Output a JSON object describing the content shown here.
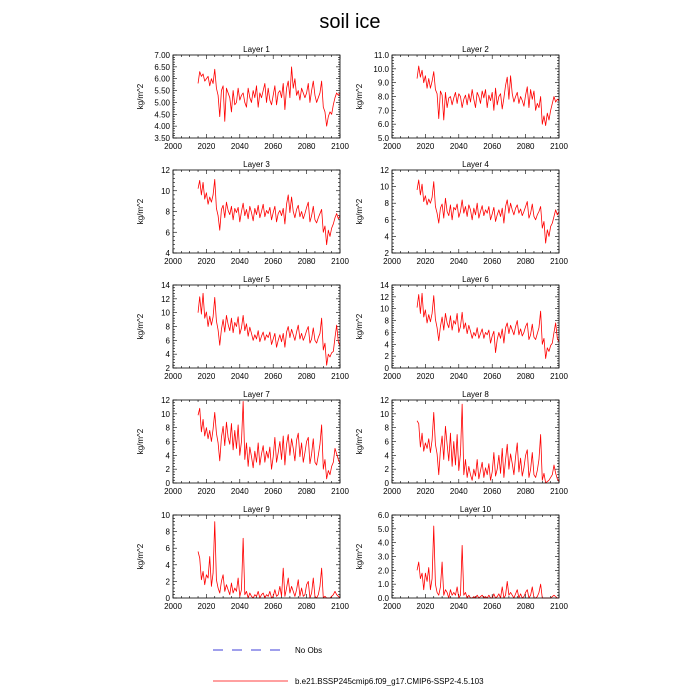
{
  "title": "soil ice",
  "legend": [
    {
      "label": "No Obs",
      "color": "#0000cc",
      "style": "dashed"
    },
    {
      "label": "b.e21.BSSP245cmip6.f09_g17.CMIP6-SSP2-4.5.103",
      "color": "#ff0000",
      "style": "solid"
    }
  ],
  "colors": {
    "series": "#ff0000",
    "obs": "#0000cc",
    "axis": "#000000"
  },
  "chart_data": [
    {
      "type": "line",
      "title": "Layer 1",
      "ylabel": "kg/m^2",
      "xlim": [
        2000,
        2100
      ],
      "ylim": [
        3.5,
        7.0
      ],
      "xticks": [
        "2000",
        "2020",
        "2040",
        "2060",
        "2080",
        "2100"
      ],
      "yticks": [
        "3.50",
        "4.00",
        "4.50",
        "5.00",
        "5.50",
        "6.00",
        "6.50",
        "7.00"
      ],
      "x_start": 2015,
      "values": [
        5.8,
        6.3,
        6.1,
        6.2,
        5.9,
        6.0,
        6.1,
        5.7,
        6.0,
        5.8,
        6.4,
        5.6,
        5.3,
        4.4,
        5.5,
        5.7,
        4.2,
        5.6,
        5.4,
        5.2,
        4.6,
        5.5,
        4.9,
        5.0,
        5.6,
        5.1,
        5.3,
        5.4,
        5.0,
        4.8,
        5.6,
        5.2,
        5.0,
        5.5,
        5.2,
        5.7,
        4.8,
        5.4,
        5.2,
        5.5,
        5.8,
        5.0,
        5.6,
        5.1,
        4.9,
        5.3,
        5.7,
        4.9,
        5.4,
        5.5,
        5.2,
        5.8,
        4.7,
        5.6,
        5.9,
        5.2,
        6.5,
        5.6,
        6.0,
        5.3,
        5.5,
        5.1,
        5.6,
        5.4,
        5.2,
        5.4,
        5.8,
        5.0,
        5.5,
        5.9,
        5.3,
        5.0,
        5.2,
        5.4,
        5.9,
        4.8,
        4.6,
        4.0,
        4.4,
        4.6,
        4.5,
        4.9,
        5.2,
        5.4,
        5.3,
        5.4
      ]
    },
    {
      "type": "line",
      "title": "Layer 2",
      "ylabel": "kg/m^2",
      "xlim": [
        2000,
        2100
      ],
      "ylim": [
        5.0,
        11.0
      ],
      "xticks": [
        "2000",
        "2020",
        "2040",
        "2060",
        "2080",
        "2100"
      ],
      "yticks": [
        "5.0",
        "6.0",
        "7.0",
        "8.0",
        "9.0",
        "10.0",
        "11.0"
      ],
      "x_start": 2015,
      "values": [
        9.3,
        10.2,
        9.4,
        9.9,
        9.0,
        9.5,
        8.6,
        9.3,
        8.6,
        9.1,
        9.8,
        8.5,
        8.2,
        6.4,
        8.4,
        8.1,
        6.3,
        8.3,
        7.2,
        7.9,
        8.0,
        7.4,
        7.9,
        8.3,
        7.5,
        8.2,
        8.0,
        7.2,
        7.8,
        8.1,
        7.4,
        8.2,
        7.6,
        8.5,
        7.8,
        7.2,
        8.3,
        8.0,
        7.5,
        8.4,
        7.9,
        8.5,
        7.2,
        8.1,
        7.7,
        8.3,
        7.0,
        8.6,
        7.4,
        8.0,
        8.2,
        7.1,
        7.9,
        8.8,
        9.4,
        7.8,
        9.5,
        8.2,
        7.6,
        8.0,
        8.3,
        7.5,
        8.0,
        7.7,
        7.3,
        8.1,
        8.7,
        7.2,
        8.5,
        7.8,
        8.4,
        7.0,
        7.5,
        7.2,
        8.0,
        6.0,
        6.6,
        5.9,
        6.8,
        6.3,
        7.0,
        7.5,
        8.0,
        7.6,
        7.8,
        7.7
      ]
    },
    {
      "type": "line",
      "title": "Layer 3",
      "ylabel": "kg/m^2",
      "xlim": [
        2000,
        2100
      ],
      "ylim": [
        4,
        12
      ],
      "xticks": [
        "2000",
        "2020",
        "2040",
        "2060",
        "2080",
        "2100"
      ],
      "yticks": [
        "4",
        "6",
        "8",
        "10",
        "12"
      ],
      "x_start": 2015,
      "values": [
        10.2,
        11.0,
        9.6,
        10.8,
        9.2,
        9.8,
        8.7,
        9.4,
        8.9,
        9.6,
        11.1,
        8.3,
        7.6,
        6.2,
        8.2,
        8.6,
        7.4,
        8.9,
        8.1,
        7.7,
        8.5,
        7.2,
        8.3,
        7.9,
        8.4,
        7.0,
        8.0,
        8.8,
        7.6,
        8.2,
        7.3,
        8.5,
        7.9,
        7.1,
        8.3,
        7.7,
        8.6,
        7.4,
        8.0,
        8.7,
        7.5,
        8.1,
        7.8,
        8.4,
        7.2,
        7.9,
        8.5,
        7.0,
        7.8,
        8.1,
        7.6,
        8.3,
        6.8,
        8.7,
        9.6,
        7.9,
        9.4,
        8.0,
        7.4,
        8.2,
        8.6,
        7.5,
        8.0,
        7.3,
        7.8,
        8.4,
        8.9,
        7.0,
        7.6,
        8.5,
        7.2,
        6.9,
        7.4,
        7.8,
        8.2,
        6.0,
        6.6,
        4.8,
        6.2,
        5.6,
        6.4,
        6.8,
        7.4,
        7.8,
        7.3,
        7.6
      ]
    },
    {
      "type": "line",
      "title": "Layer 4",
      "ylabel": "kg/m^2",
      "xlim": [
        2000,
        2100
      ],
      "ylim": [
        2,
        12
      ],
      "xticks": [
        "2000",
        "2020",
        "2040",
        "2060",
        "2080",
        "2100"
      ],
      "yticks": [
        "2",
        "4",
        "6",
        "8",
        "10",
        "12"
      ],
      "x_start": 2015,
      "values": [
        9.6,
        10.8,
        9.0,
        10.3,
        8.2,
        8.9,
        7.8,
        8.5,
        8.0,
        8.7,
        10.6,
        7.6,
        6.8,
        5.6,
        7.4,
        7.9,
        6.2,
        8.6,
        7.0,
        6.5,
        7.8,
        6.0,
        7.5,
        7.2,
        7.9,
        6.3,
        7.0,
        8.4,
        6.8,
        7.6,
        6.4,
        7.8,
        7.2,
        6.0,
        7.4,
        6.6,
        8.0,
        6.2,
        7.0,
        7.7,
        6.5,
        7.2,
        6.8,
        7.6,
        6.0,
        6.7,
        7.5,
        5.8,
        6.6,
        7.2,
        6.4,
        7.4,
        5.6,
        7.6,
        8.4,
        6.8,
        8.0,
        7.2,
        6.6,
        7.4,
        7.8,
        6.8,
        7.3,
        6.5,
        7.0,
        7.6,
        8.2,
        6.2,
        6.8,
        7.9,
        6.4,
        6.0,
        6.6,
        7.0,
        7.6,
        5.0,
        5.8,
        3.2,
        4.8,
        4.0,
        5.2,
        5.6,
        6.4,
        7.2,
        6.6,
        7.0
      ]
    },
    {
      "type": "line",
      "title": "Layer 5",
      "ylabel": "kg/m^2",
      "xlim": [
        2000,
        2100
      ],
      "ylim": [
        2,
        14
      ],
      "xticks": [
        "2000",
        "2020",
        "2040",
        "2060",
        "2080",
        "2100"
      ],
      "yticks": [
        "2",
        "4",
        "6",
        "8",
        "10",
        "12",
        "14"
      ],
      "x_start": 2015,
      "values": [
        10.0,
        12.3,
        9.8,
        12.8,
        9.2,
        10.1,
        8.0,
        9.5,
        8.2,
        9.4,
        12.2,
        8.8,
        7.5,
        5.3,
        7.6,
        9.0,
        7.2,
        9.6,
        8.3,
        7.4,
        9.2,
        7.1,
        8.6,
        8.0,
        9.4,
        6.9,
        7.8,
        9.6,
        7.4,
        8.4,
        6.6,
        7.9,
        7.0,
        6.0,
        6.8,
        6.2,
        7.4,
        5.8,
        6.6,
        7.2,
        6.0,
        6.8,
        6.4,
        7.2,
        5.4,
        6.2,
        7.0,
        5.0,
        6.0,
        6.8,
        5.8,
        7.0,
        5.0,
        7.2,
        8.0,
        6.4,
        7.6,
        6.8,
        6.0,
        7.2,
        8.2,
        6.2,
        7.0,
        6.0,
        6.6,
        7.4,
        8.0,
        5.6,
        6.2,
        7.8,
        6.0,
        5.6,
        6.4,
        7.0,
        9.2,
        4.6,
        5.6,
        2.4,
        4.0,
        3.6,
        4.2,
        4.4,
        6.4,
        8.2,
        5.8,
        5.2
      ]
    },
    {
      "type": "line",
      "title": "Layer 6",
      "ylabel": "kg/m^2",
      "xlim": [
        2000,
        2100
      ],
      "ylim": [
        0,
        14
      ],
      "xticks": [
        "2000",
        "2020",
        "2040",
        "2060",
        "2080",
        "2100"
      ],
      "yticks": [
        "0",
        "2",
        "4",
        "6",
        "8",
        "10",
        "12",
        "14"
      ],
      "x_start": 2015,
      "values": [
        10.2,
        12.4,
        9.2,
        12.6,
        8.6,
        9.8,
        7.6,
        9.0,
        7.8,
        9.2,
        12.2,
        8.2,
        6.8,
        4.6,
        7.0,
        8.6,
        6.4,
        9.2,
        7.6,
        6.8,
        8.8,
        6.4,
        8.0,
        7.4,
        9.2,
        6.0,
        7.0,
        9.4,
        6.6,
        7.6,
        5.8,
        7.2,
        6.2,
        5.0,
        6.0,
        5.4,
        6.8,
        5.0,
        5.8,
        6.6,
        5.0,
        6.0,
        5.6,
        6.4,
        4.2,
        5.4,
        6.2,
        2.6,
        4.8,
        6.0,
        5.0,
        6.6,
        4.2,
        6.8,
        7.6,
        5.8,
        7.2,
        6.4,
        5.6,
        7.0,
        8.0,
        5.6,
        6.6,
        5.4,
        6.0,
        7.0,
        7.6,
        4.8,
        5.6,
        7.4,
        5.2,
        4.8,
        5.8,
        6.8,
        9.6,
        4.0,
        5.0,
        1.6,
        3.4,
        2.8,
        3.8,
        4.2,
        6.0,
        7.6,
        5.0,
        4.4
      ]
    },
    {
      "type": "line",
      "title": "Layer 7",
      "ylabel": "kg/m^2",
      "xlim": [
        2000,
        2100
      ],
      "ylim": [
        0,
        12
      ],
      "xticks": [
        "2000",
        "2020",
        "2040",
        "2060",
        "2080",
        "2100"
      ],
      "yticks": [
        "0",
        "2",
        "4",
        "6",
        "8",
        "10",
        "12"
      ],
      "x_start": 2015,
      "values": [
        9.8,
        10.8,
        7.4,
        9.2,
        6.8,
        8.0,
        6.4,
        7.6,
        6.0,
        7.8,
        10.2,
        7.2,
        5.8,
        3.2,
        6.6,
        8.2,
        5.4,
        8.8,
        6.6,
        5.6,
        8.6,
        4.8,
        7.6,
        5.0,
        8.4,
        4.0,
        6.0,
        11.8,
        3.4,
        5.8,
        2.4,
        5.2,
        3.8,
        2.2,
        4.6,
        3.0,
        5.8,
        2.6,
        4.2,
        5.4,
        3.0,
        4.6,
        3.6,
        5.2,
        2.0,
        3.8,
        6.6,
        3.0,
        4.4,
        6.0,
        3.4,
        6.8,
        2.6,
        5.6,
        7.0,
        4.0,
        6.4,
        5.0,
        3.2,
        6.2,
        7.2,
        3.8,
        5.8,
        3.0,
        4.4,
        6.0,
        6.6,
        2.8,
        4.2,
        6.4,
        3.0,
        2.6,
        4.0,
        5.6,
        8.4,
        2.0,
        3.4,
        0.6,
        1.8,
        1.2,
        2.4,
        3.0,
        5.0,
        4.2,
        3.4,
        2.8
      ]
    },
    {
      "type": "line",
      "title": "Layer 8",
      "ylabel": "kg/m^2",
      "xlim": [
        2000,
        2100
      ],
      "ylim": [
        0,
        12
      ],
      "xticks": [
        "2000",
        "2020",
        "2040",
        "2060",
        "2080",
        "2100"
      ],
      "yticks": [
        "0",
        "2",
        "4",
        "6",
        "8",
        "10",
        "12"
      ],
      "x_start": 2015,
      "values": [
        9.0,
        8.6,
        5.2,
        7.2,
        4.6,
        5.8,
        5.0,
        6.4,
        4.4,
        6.2,
        10.2,
        5.6,
        4.2,
        1.2,
        4.8,
        6.8,
        3.4,
        8.2,
        5.6,
        3.2,
        7.2,
        2.4,
        6.0,
        2.6,
        7.0,
        1.8,
        4.2,
        11.4,
        1.2,
        3.4,
        0.8,
        2.4,
        1.2,
        0.4,
        2.0,
        1.0,
        3.4,
        0.6,
        1.8,
        3.0,
        0.8,
        2.2,
        1.2,
        2.8,
        0.4,
        1.6,
        4.4,
        1.0,
        2.0,
        4.0,
        1.4,
        5.0,
        0.8,
        3.4,
        5.6,
        2.0,
        4.2,
        2.8,
        1.2,
        3.8,
        5.8,
        1.6,
        3.6,
        1.0,
        2.2,
        4.0,
        4.8,
        0.8,
        2.0,
        4.4,
        1.2,
        0.8,
        1.8,
        3.4,
        7.0,
        0.4,
        1.4,
        0.0,
        0.2,
        0.4,
        0.8,
        1.2,
        2.6,
        1.4,
        0.6,
        0.2
      ]
    },
    {
      "type": "line",
      "title": "Layer 9",
      "ylabel": "kg/m^2",
      "xlim": [
        2000,
        2100
      ],
      "ylim": [
        0,
        10
      ],
      "xticks": [
        "2000",
        "2020",
        "2040",
        "2060",
        "2080",
        "2100"
      ],
      "yticks": [
        "0",
        "2",
        "4",
        "6",
        "8",
        "10"
      ],
      "x_start": 2015,
      "values": [
        5.6,
        4.8,
        2.2,
        3.2,
        1.6,
        2.8,
        2.4,
        5.0,
        1.4,
        3.0,
        9.2,
        2.2,
        1.2,
        0.6,
        2.0,
        2.8,
        0.8,
        1.6,
        1.0,
        0.4,
        1.8,
        0.6,
        1.2,
        0.8,
        2.4,
        0.2,
        1.0,
        7.2,
        0.4,
        0.8,
        0.0,
        0.6,
        0.2,
        0.0,
        0.4,
        0.2,
        0.8,
        0.0,
        0.4,
        0.6,
        0.0,
        0.4,
        0.2,
        0.8,
        0.0,
        0.2,
        1.0,
        0.2,
        0.4,
        1.4,
        0.2,
        3.6,
        0.2,
        1.2,
        2.4,
        0.6,
        1.4,
        0.8,
        0.2,
        1.0,
        2.2,
        0.2,
        1.2,
        0.2,
        0.4,
        1.6,
        2.0,
        0.0,
        0.6,
        2.4,
        0.2,
        0.0,
        0.4,
        1.4,
        3.6,
        0.0,
        0.2,
        0.0,
        0.0,
        0.0,
        0.2,
        0.4,
        0.8,
        0.4,
        0.2,
        0.0
      ]
    },
    {
      "type": "line",
      "title": "Layer 10",
      "ylabel": "kg/m^2",
      "xlim": [
        2000,
        2100
      ],
      "ylim": [
        0,
        6
      ],
      "xticks": [
        "2000",
        "2020",
        "2040",
        "2060",
        "2080",
        "2100"
      ],
      "yticks": [
        "0.0",
        "1.0",
        "2.0",
        "3.0",
        "4.0",
        "5.0",
        "6.0"
      ],
      "x_start": 2015,
      "values": [
        2.0,
        2.6,
        1.4,
        1.8,
        0.6,
        1.8,
        1.2,
        2.2,
        0.6,
        1.4,
        5.2,
        1.0,
        0.4,
        0.2,
        0.8,
        2.6,
        0.2,
        0.6,
        0.4,
        0.0,
        0.6,
        0.2,
        0.4,
        0.2,
        0.8,
        0.0,
        0.2,
        3.8,
        0.2,
        0.4,
        0.0,
        0.2,
        0.0,
        0.0,
        0.1,
        0.0,
        0.2,
        0.0,
        0.1,
        0.2,
        0.0,
        0.1,
        0.0,
        0.2,
        0.0,
        0.0,
        0.3,
        0.0,
        0.1,
        0.3,
        0.0,
        0.8,
        0.0,
        0.2,
        1.2,
        0.2,
        0.4,
        0.2,
        0.0,
        0.3,
        0.6,
        0.0,
        0.3,
        0.0,
        0.1,
        0.4,
        0.6,
        0.0,
        0.2,
        0.8,
        0.0,
        0.0,
        0.1,
        0.4,
        1.0,
        0.0,
        0.0,
        0.0,
        0.0,
        0.0,
        0.0,
        0.1,
        0.2,
        0.1,
        0.0,
        0.0
      ]
    }
  ]
}
